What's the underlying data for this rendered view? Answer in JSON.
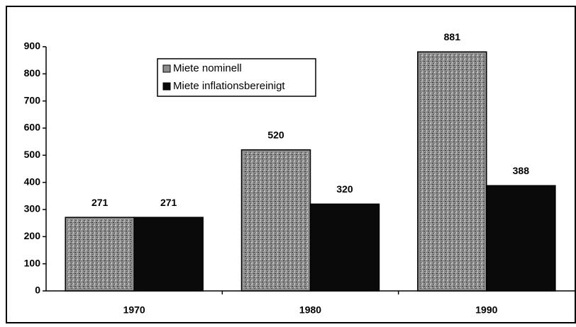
{
  "chart_data": {
    "type": "bar",
    "categories": [
      "1970",
      "1980",
      "1990"
    ],
    "series": [
      {
        "name": "Miete nominell",
        "color": "#8c8c8c",
        "values": [
          271,
          520,
          881
        ]
      },
      {
        "name": "Miete inflationsbereinigt",
        "color": "#0a0a0a",
        "values": [
          271,
          320,
          388
        ]
      }
    ],
    "ylim": [
      0,
      900
    ],
    "yticks": [
      0,
      100,
      200,
      300,
      400,
      500,
      600,
      700,
      800,
      900
    ],
    "grid": false,
    "legend": "top"
  }
}
